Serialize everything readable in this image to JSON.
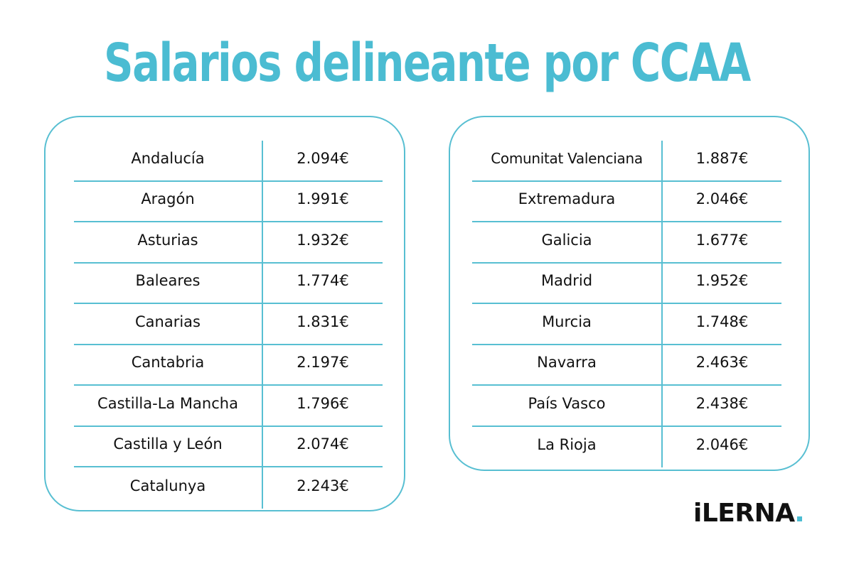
{
  "title": "Salarios delineante por CCAA",
  "colors": {
    "accent": "#4bbcd2",
    "border": "#58bfd2",
    "text": "#111111"
  },
  "left_table": {
    "rows": [
      {
        "region": "Andalucía",
        "salary": "2.094€"
      },
      {
        "region": "Aragón",
        "salary": "1.991€"
      },
      {
        "region": "Asturias",
        "salary": "1.932€"
      },
      {
        "region": "Baleares",
        "salary": "1.774€"
      },
      {
        "region": "Canarias",
        "salary": "1.831€"
      },
      {
        "region": "Cantabria",
        "salary": "2.197€"
      },
      {
        "region": "Castilla-La Mancha",
        "salary": "1.796€"
      },
      {
        "region": "Castilla y León",
        "salary": "2.074€"
      },
      {
        "region": "Catalunya",
        "salary": "2.243€"
      }
    ]
  },
  "right_table": {
    "rows": [
      {
        "region": "Comunitat Valenciana",
        "salary": "1.887€"
      },
      {
        "region": "Extremadura",
        "salary": "2.046€"
      },
      {
        "region": "Galicia",
        "salary": "1.677€"
      },
      {
        "region": "Madrid",
        "salary": "1.952€"
      },
      {
        "region": "Murcia",
        "salary": "1.748€"
      },
      {
        "region": "Navarra",
        "salary": "2.463€"
      },
      {
        "region": "País Vasco",
        "salary": "2.438€"
      },
      {
        "region": "La Rioja",
        "salary": "2.046€"
      }
    ]
  },
  "logo": {
    "text": "iLERNA"
  }
}
